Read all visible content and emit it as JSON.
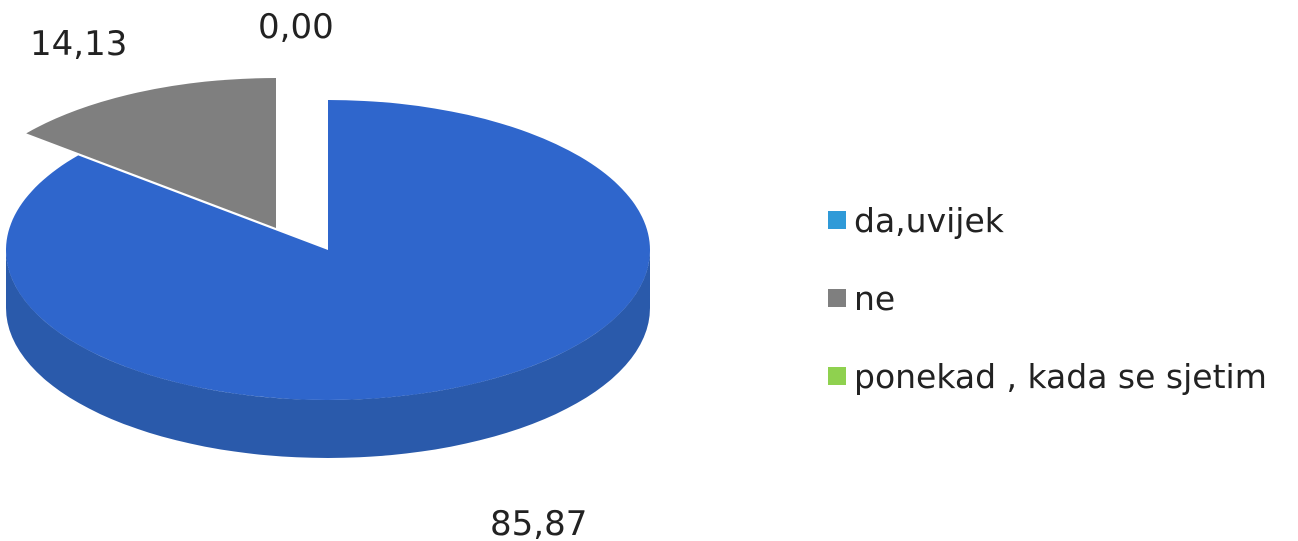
{
  "chart_data": {
    "type": "pie",
    "title": "",
    "categories": [
      "da,uvijek",
      "ne",
      "ponekad , kada se sjetim"
    ],
    "values": [
      85.87,
      14.13,
      0.0
    ],
    "data_labels": [
      "85,87",
      "14,13",
      "0,00"
    ],
    "colors": [
      "#2f66cc",
      "#7f7f7f",
      "#8fd14f"
    ],
    "legend_colors": [
      "#2f9ad8",
      "#7f7f7f",
      "#8fd14f"
    ],
    "style": "3d-exploded",
    "legend_position": "right"
  }
}
